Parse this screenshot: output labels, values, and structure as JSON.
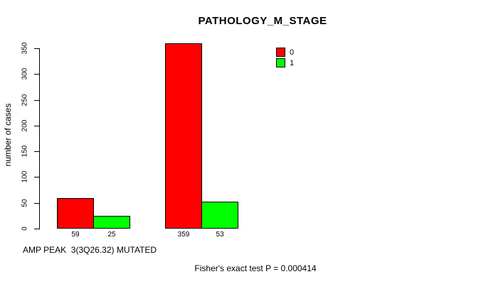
{
  "title": "PATHOLOGY_M_STAGE",
  "ylabel": "number of cases",
  "xlabel": "AMP PEAK  3(3Q26.32) MUTATED",
  "footer": "Fisher's exact test P = 0.000414",
  "legend": {
    "items": [
      {
        "label": "0",
        "color": "#FF0000"
      },
      {
        "label": "1",
        "color": "#00FF00"
      }
    ]
  },
  "chart_data": {
    "type": "bar",
    "title": "PATHOLOGY_M_STAGE",
    "ylabel": "number of cases",
    "xlabel": "AMP PEAK  3(3Q26.32) MUTATED",
    "ylim": [
      0,
      350
    ],
    "yticks": [
      0,
      50,
      100,
      150,
      200,
      250,
      300,
      350
    ],
    "grid": false,
    "legend_position": "top-right",
    "series": [
      {
        "name": "0",
        "color": "#FF0000",
        "values": [
          59,
          359
        ]
      },
      {
        "name": "1",
        "color": "#00FF00",
        "values": [
          25,
          53
        ]
      }
    ],
    "bar_value_labels": [
      [
        "59",
        "25"
      ],
      [
        "359",
        "53"
      ]
    ],
    "annotation": "Fisher's exact test P = 0.000414"
  }
}
